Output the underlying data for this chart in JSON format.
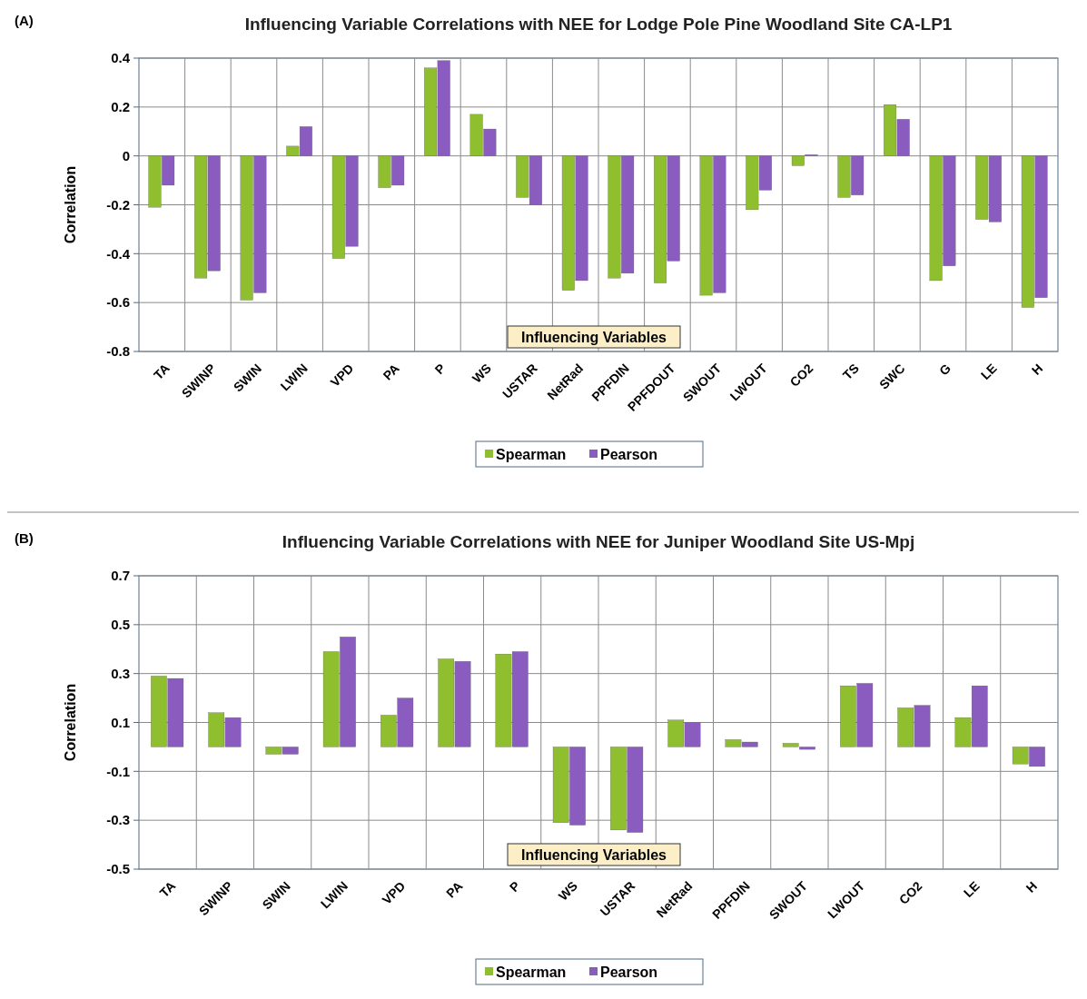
{
  "chart_data": [
    {
      "type": "bar",
      "title": "Influencing Variable Correlations with NEE for Lodge Pole Pine Woodland Site CA-LP1",
      "annotations": [
        "(A)"
      ],
      "xlabel": "Influencing Variables",
      "ylabel": "Correlation",
      "categories": [
        "TA",
        "SWINP",
        "SWIN",
        "LWIN",
        "VPD",
        "PA",
        "P",
        "WS",
        "USTAR",
        "NetRad",
        "PPFDIN",
        "PPFDOUT",
        "SWOUT",
        "LWOUT",
        "CO2",
        "TS",
        "SWC",
        "G",
        "LE",
        "H"
      ],
      "series": [
        {
          "name": "Spearman",
          "color": "#8fbf2f",
          "values": [
            -0.21,
            -0.5,
            -0.59,
            0.04,
            -0.42,
            -0.13,
            0.36,
            0.17,
            -0.17,
            -0.55,
            -0.5,
            -0.52,
            -0.57,
            -0.22,
            -0.04,
            -0.17,
            0.21,
            -0.51,
            -0.26,
            -0.62
          ]
        },
        {
          "name": "Pearson",
          "color": "#8a5cc0",
          "values": [
            -0.12,
            -0.47,
            -0.56,
            0.12,
            -0.37,
            -0.12,
            0.39,
            0.11,
            -0.2,
            -0.51,
            -0.48,
            -0.43,
            -0.56,
            -0.14,
            0.005,
            -0.16,
            0.15,
            -0.45,
            -0.27,
            -0.58
          ]
        }
      ],
      "ylim": [
        -0.8,
        0.4
      ],
      "yticks": [
        -0.8,
        -0.6,
        -0.4,
        -0.2,
        0,
        0.2,
        0.4
      ],
      "grid": true,
      "legend": "bottom"
    },
    {
      "type": "bar",
      "title": "Influencing Variable Correlations with NEE for Juniper Woodland Site US-Mpj",
      "annotations": [
        "(B)"
      ],
      "xlabel": "Influencing Variables",
      "ylabel": "Correlation",
      "categories": [
        "TA",
        "SWINP",
        "SWIN",
        "LWIN",
        "VPD",
        "PA",
        "P",
        "WS",
        "USTAR",
        "NetRad",
        "PPFDIN",
        "SWOUT",
        "LWOUT",
        "CO2",
        "LE",
        "H"
      ],
      "series": [
        {
          "name": "Spearman",
          "color": "#8fbf2f",
          "values": [
            0.29,
            0.14,
            -0.03,
            0.39,
            0.13,
            0.36,
            0.38,
            -0.31,
            -0.34,
            0.11,
            0.03,
            0.015,
            0.25,
            0.16,
            0.12,
            -0.07
          ]
        },
        {
          "name": "Pearson",
          "color": "#8a5cc0",
          "values": [
            0.28,
            0.12,
            -0.03,
            0.45,
            0.2,
            0.35,
            0.39,
            -0.32,
            -0.35,
            0.1,
            0.02,
            -0.01,
            0.26,
            0.17,
            0.25,
            -0.08
          ]
        }
      ],
      "ylim": [
        -0.5,
        0.7
      ],
      "yticks": [
        -0.5,
        -0.3,
        -0.1,
        0.1,
        0.3,
        0.5,
        0.7
      ],
      "grid": true,
      "legend": "bottom"
    }
  ]
}
